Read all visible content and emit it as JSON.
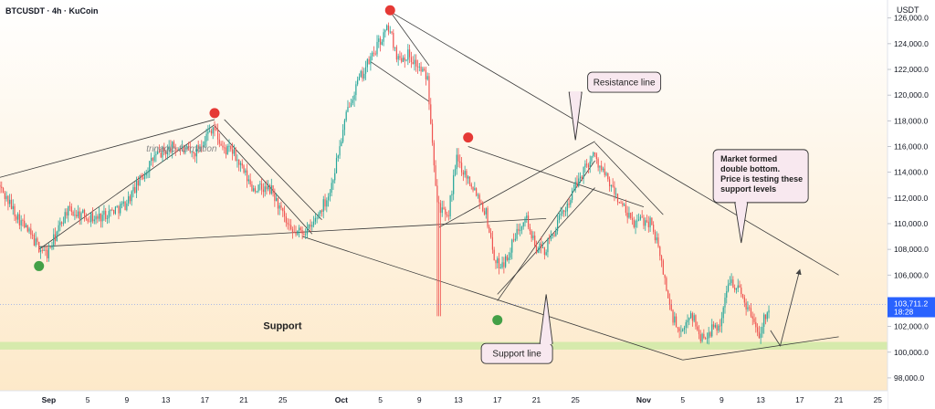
{
  "header": {
    "symbol": "BTCUSDT · 4h · KuCoin",
    "currency_label": "USDT"
  },
  "price_tag": {
    "price": "103,711.2",
    "countdown": "18:28",
    "color": "#2962ff"
  },
  "colors": {
    "up": "#26a69a",
    "down": "#ef5350",
    "support_band": "#cfeaa6",
    "peak_marker": "#e53935",
    "trough_marker": "#43a047",
    "bg_top": "#ffffff",
    "bg_bottom": "#fde9c9"
  },
  "labels": {
    "triangle": "trinagle formation",
    "support": "Support",
    "resistance_callout": "Resistance line",
    "support_callout": "Support line",
    "market_callout": [
      "Market formed",
      "double bottom.",
      "Price is testing these",
      "support levels"
    ]
  },
  "chart_data": {
    "type": "candlestick",
    "title": "BTCUSDT · 4h · KuCoin",
    "timeframe": "4h",
    "y_unit": "USDT",
    "ylim": [
      97000,
      127400
    ],
    "x_range": [
      "2025-08-27",
      "2025-11-26"
    ],
    "y_ticks": [
      "98,000.0",
      "100,000.0",
      "102,000.0",
      "104,000.0",
      "106,000.0",
      "108,000.0",
      "110,000.0",
      "112,000.0",
      "114,000.0",
      "116,000.0",
      "118,000.0",
      "120,000.0",
      "122,000.0",
      "124,000.0",
      "126,000.0"
    ],
    "x_ticks": [
      {
        "date": "2025-09-01",
        "label": "Sep"
      },
      {
        "date": "2025-09-05",
        "label": "5"
      },
      {
        "date": "2025-09-09",
        "label": "9"
      },
      {
        "date": "2025-09-13",
        "label": "13"
      },
      {
        "date": "2025-09-17",
        "label": "17"
      },
      {
        "date": "2025-09-21",
        "label": "21"
      },
      {
        "date": "2025-09-25",
        "label": "25"
      },
      {
        "date": "2025-10-01",
        "label": "Oct"
      },
      {
        "date": "2025-10-05",
        "label": "5"
      },
      {
        "date": "2025-10-09",
        "label": "9"
      },
      {
        "date": "2025-10-13",
        "label": "13"
      },
      {
        "date": "2025-10-17",
        "label": "17"
      },
      {
        "date": "2025-10-21",
        "label": "21"
      },
      {
        "date": "2025-10-25",
        "label": "25"
      },
      {
        "date": "2025-11-01",
        "label": "Nov"
      },
      {
        "date": "2025-11-05",
        "label": "5"
      },
      {
        "date": "2025-11-09",
        "label": "9"
      },
      {
        "date": "2025-11-13",
        "label": "13"
      },
      {
        "date": "2025-11-17",
        "label": "17"
      },
      {
        "date": "2025-11-21",
        "label": "21"
      },
      {
        "date": "2025-11-25",
        "label": "25"
      }
    ],
    "price_path": [
      {
        "t": "2025-08-27",
        "p": 113000
      },
      {
        "t": "2025-08-29",
        "p": 110500
      },
      {
        "t": "2025-08-31",
        "p": 108300
      },
      {
        "t": "2025-09-01",
        "p": 107600
      },
      {
        "t": "2025-09-03",
        "p": 111000
      },
      {
        "t": "2025-09-06",
        "p": 110400
      },
      {
        "t": "2025-09-09",
        "p": 111500
      },
      {
        "t": "2025-09-12",
        "p": 115200
      },
      {
        "t": "2025-09-14",
        "p": 116000
      },
      {
        "t": "2025-09-16",
        "p": 115400
      },
      {
        "t": "2025-09-18",
        "p": 117600
      },
      {
        "t": "2025-09-19",
        "p": 115800
      },
      {
        "t": "2025-09-20",
        "p": 115600
      },
      {
        "t": "2025-09-22",
        "p": 112800
      },
      {
        "t": "2025-09-24",
        "p": 112600
      },
      {
        "t": "2025-09-26",
        "p": 109200
      },
      {
        "t": "2025-09-28",
        "p": 109600
      },
      {
        "t": "2025-09-30",
        "p": 112500
      },
      {
        "t": "2025-10-01",
        "p": 116000
      },
      {
        "t": "2025-10-02",
        "p": 119500
      },
      {
        "t": "2025-10-03",
        "p": 121200
      },
      {
        "t": "2025-10-05",
        "p": 124000
      },
      {
        "t": "2025-10-06",
        "p": 125300
      },
      {
        "t": "2025-10-07",
        "p": 122800
      },
      {
        "t": "2025-10-08",
        "p": 123200
      },
      {
        "t": "2025-10-10",
        "p": 121300
      },
      {
        "t": "2025-10-11",
        "p": 111800
      },
      {
        "t": "2025-10-12",
        "p": 110200
      },
      {
        "t": "2025-10-13",
        "p": 115000
      },
      {
        "t": "2025-10-15",
        "p": 112500
      },
      {
        "t": "2025-10-16",
        "p": 110800
      },
      {
        "t": "2025-10-17",
        "p": 106800
      },
      {
        "t": "2025-10-18",
        "p": 107100
      },
      {
        "t": "2025-10-20",
        "p": 110800
      },
      {
        "t": "2025-10-21",
        "p": 108200
      },
      {
        "t": "2025-10-22",
        "p": 107900
      },
      {
        "t": "2025-10-24",
        "p": 111000
      },
      {
        "t": "2025-10-26",
        "p": 114200
      },
      {
        "t": "2025-10-27",
        "p": 115400
      },
      {
        "t": "2025-10-28",
        "p": 114000
      },
      {
        "t": "2025-10-29",
        "p": 112600
      },
      {
        "t": "2025-10-31",
        "p": 110000
      },
      {
        "t": "2025-11-01",
        "p": 110300
      },
      {
        "t": "2025-11-02",
        "p": 110100
      },
      {
        "t": "2025-11-03",
        "p": 106900
      },
      {
        "t": "2025-11-04",
        "p": 103000
      },
      {
        "t": "2025-11-05",
        "p": 101200
      },
      {
        "t": "2025-11-06",
        "p": 103200
      },
      {
        "t": "2025-11-07",
        "p": 101100
      },
      {
        "t": "2025-11-09",
        "p": 102200
      },
      {
        "t": "2025-11-10",
        "p": 105800
      },
      {
        "t": "2025-11-11",
        "p": 104800
      },
      {
        "t": "2025-11-12",
        "p": 103200
      },
      {
        "t": "2025-11-13",
        "p": 101500
      },
      {
        "t": "2025-11-14",
        "p": 103700
      }
    ],
    "levels": [
      {
        "name": "Support",
        "from": 100200,
        "to": 100800
      }
    ],
    "trend_lines": [
      {
        "name": "triangle-lower",
        "from": {
          "t": "2025-08-31",
          "p": 108000
        },
        "to": {
          "t": "2025-09-18",
          "p": 117700
        }
      },
      {
        "name": "triangle-upper",
        "from": {
          "t": "2025-08-27",
          "p": 113600
        },
        "to": {
          "t": "2025-09-18",
          "p": 118100
        }
      },
      {
        "name": "flag-lower",
        "from": {
          "t": "2025-09-18",
          "p": 117600
        },
        "to": {
          "t": "2025-09-28",
          "p": 109200
        }
      },
      {
        "name": "flag-upper",
        "from": {
          "t": "2025-09-19",
          "p": 118100
        },
        "to": {
          "t": "2025-09-29",
          "p": 110300
        }
      },
      {
        "name": "long-support-a",
        "from": {
          "t": "2025-08-31",
          "p": 108200
        },
        "to": {
          "t": "2025-10-22",
          "p": 110400
        }
      },
      {
        "name": "resistance-line",
        "from": {
          "t": "2025-10-06",
          "p": 126500
        },
        "to": {
          "t": "2025-11-21",
          "p": 106000
        }
      },
      {
        "name": "support-line",
        "from": {
          "t": "2025-09-27",
          "p": 109000
        },
        "to": {
          "t": "2025-11-05",
          "p": 99400
        }
      },
      {
        "name": "peak-channel-upper",
        "from": {
          "t": "2025-10-06",
          "p": 126500
        },
        "to": {
          "t": "2025-10-10",
          "p": 122300
        }
      },
      {
        "name": "peak-channel-lower",
        "from": {
          "t": "2025-10-04",
          "p": 122600
        },
        "to": {
          "t": "2025-10-10",
          "p": 119500
        }
      },
      {
        "name": "second-top-line",
        "from": {
          "t": "2025-10-14",
          "p": 116000
        },
        "to": {
          "t": "2025-11-01",
          "p": 111300
        }
      },
      {
        "name": "rising-lower",
        "from": {
          "t": "2025-10-11",
          "p": 109700
        },
        "to": {
          "t": "2025-10-27",
          "p": 116400
        }
      },
      {
        "name": "rising-mid",
        "from": {
          "t": "2025-10-17",
          "p": 104000
        },
        "to": {
          "t": "2025-10-27",
          "p": 114900
        }
      },
      {
        "name": "rising-low",
        "from": {
          "t": "2025-10-17",
          "p": 104500
        },
        "to": {
          "t": "2025-10-27",
          "p": 112800
        }
      },
      {
        "name": "post-peak-fall",
        "from": {
          "t": "2025-10-27",
          "p": 116300
        },
        "to": {
          "t": "2025-11-03",
          "p": 110700
        }
      },
      {
        "name": "new-support",
        "from": {
          "t": "2025-11-05",
          "p": 99400
        },
        "to": {
          "t": "2025-11-21",
          "p": 101200
        }
      }
    ],
    "markers": [
      {
        "t": "2025-09-18",
        "p": 118600,
        "kind": "peak"
      },
      {
        "t": "2025-10-06",
        "p": 126600,
        "kind": "peak"
      },
      {
        "t": "2025-10-14",
        "p": 116700,
        "kind": "peak"
      },
      {
        "t": "2025-08-31",
        "p": 106700,
        "kind": "trough"
      },
      {
        "t": "2025-10-17",
        "p": 102500,
        "kind": "trough"
      }
    ],
    "projection": [
      {
        "t": "2025-11-14",
        "p": 101700
      },
      {
        "t": "2025-11-15",
        "p": 100500
      },
      {
        "t": "2025-11-17",
        "p": 106400
      }
    ]
  }
}
